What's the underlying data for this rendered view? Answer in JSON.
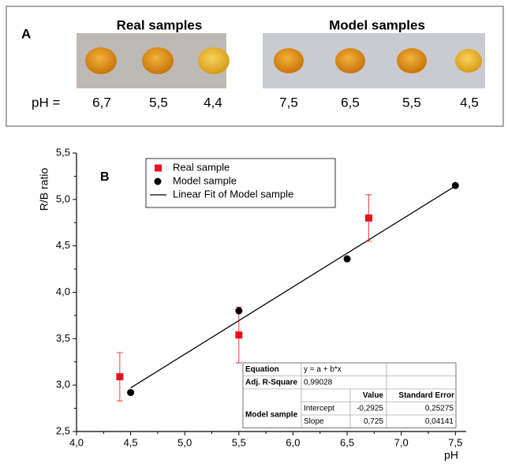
{
  "panel_a": {
    "label": "A",
    "real_title": "Real samples",
    "model_title": "Model samples",
    "ph_label": "pH =",
    "real_ph": [
      "6,7",
      "5,5",
      "4,4"
    ],
    "model_ph": [
      "7,5",
      "6,5",
      "5,5",
      "4,5"
    ]
  },
  "chart_data": {
    "type": "scatter",
    "panel_label": "B",
    "x_label": "pH",
    "y_label": "R/B ratio",
    "xlim": [
      4.0,
      7.6
    ],
    "ylim": [
      2.5,
      5.5
    ],
    "xticks": [
      {
        "value": 4.0,
        "label": "4,0"
      },
      {
        "value": 4.5,
        "label": "4,5"
      },
      {
        "value": 5.0,
        "label": "5,0"
      },
      {
        "value": 5.5,
        "label": "5,5"
      },
      {
        "value": 6.0,
        "label": "6,0"
      },
      {
        "value": 6.5,
        "label": "6,5"
      },
      {
        "value": 7.0,
        "label": "7,0"
      },
      {
        "value": 7.5,
        "label": "7,5"
      }
    ],
    "yticks": [
      {
        "value": 2.5,
        "label": "2,5"
      },
      {
        "value": 3.0,
        "label": "3,0"
      },
      {
        "value": 3.5,
        "label": "3,5"
      },
      {
        "value": 4.0,
        "label": "4,0"
      },
      {
        "value": 4.5,
        "label": "4,5"
      },
      {
        "value": 5.0,
        "label": "5,0"
      },
      {
        "value": 5.5,
        "label": "5,5"
      }
    ],
    "series": [
      {
        "name": "Real sample",
        "color": "#e8141b",
        "kind": "scatter",
        "marker": "square",
        "x": [
          4.4,
          5.5,
          6.7
        ],
        "values": [
          3.09,
          3.54,
          4.8
        ],
        "errors": [
          0.26,
          0.3,
          0.25
        ]
      },
      {
        "name": "Model sample",
        "color": "#000000",
        "kind": "scatter",
        "marker": "circle",
        "x": [
          4.5,
          5.5,
          6.5,
          7.5
        ],
        "values": [
          2.92,
          3.8,
          4.36,
          5.15
        ]
      },
      {
        "name": "Linear Fit of Model sample",
        "color": "#000000",
        "kind": "line",
        "x": [
          4.5,
          7.5
        ],
        "values": [
          2.97,
          5.145
        ]
      }
    ],
    "table": {
      "equation_label": "Equation",
      "equation": "y = a + b*x",
      "r2_label": "Adj. R-Square",
      "r2": "0,99028",
      "columns": [
        "Value",
        "Standard Error"
      ],
      "group": "Model sample",
      "rows": [
        {
          "name": "Intercept",
          "cells": [
            "-0,2925",
            "0,25275"
          ]
        },
        {
          "name": "Slope",
          "cells": [
            "0,725",
            "0,04141"
          ]
        }
      ]
    }
  }
}
